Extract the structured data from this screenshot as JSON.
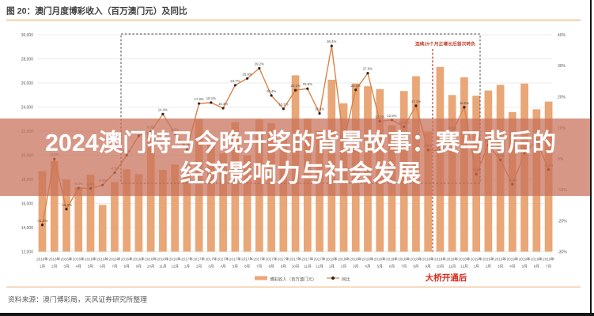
{
  "figure": {
    "title": "图 20：澳门月度博彩收入（百万澳门元）及同比",
    "source_note": "资料来源：澳门博彩局，天风证券研究所整理"
  },
  "overlay_banner": {
    "line1": "2024澳门特马今晚开奖的背景故事：赛马背后的",
    "line2": "经济影响力与社会发展",
    "text_color": "#ffffff",
    "background_color": "rgba(200,112,89,0.73)"
  },
  "annotations": {
    "streak_note": "连续29个月正增长后首次转负",
    "bridge_note": "大桥开通后",
    "note_color": "#c2402e",
    "bridge_color": "#d92b1c"
  },
  "legend": {
    "bar_series_label": "博彩收入（百万澳门元）",
    "line_series_label": "同比"
  },
  "colors": {
    "bar": "#e9a676",
    "line": "#dc8348",
    "marker": "#2e221b",
    "gridline": "#ececec",
    "axis_text": "#595959",
    "point_label": "#4d4d4d",
    "title_text": "#3f3f3f",
    "rule": "#f2cda6",
    "dashed_box": "#4d4d4d",
    "red_dash": "#c0392b",
    "frame": "#141414",
    "source_text": "#595959"
  },
  "chart_data": {
    "type": "bar+line",
    "title": "图 20：澳门月度博彩收入（百万澳门元）及同比",
    "bar_series_name": "博彩收入（百万澳门元）",
    "line_series_name": "同比",
    "legend_position": "bottom",
    "grid": "horizontal",
    "ylim_left": [
      12000,
      30000
    ],
    "ylim_right": [
      -30,
      40
    ],
    "left_axis_ticks": [
      "30,000",
      "28,000",
      "26,000",
      "24,000",
      "22,000",
      "20,000",
      "18,000",
      "16,000",
      "14,000",
      "12,000"
    ],
    "right_axis_ticks": [
      "40%",
      "30%",
      "20%",
      "10%",
      "0%",
      "-10%",
      "-20%",
      "-30%"
    ],
    "x_year_labels": [
      "2016年",
      "2016年",
      "2016年",
      "2016年",
      "2016年",
      "2016年",
      "2016年",
      "2016年",
      "2016年",
      "2016年",
      "2016年",
      "2016年",
      "2017年",
      "2017年",
      "2017年",
      "2017年",
      "2017年",
      "2017年",
      "2017年",
      "2017年",
      "2017年",
      "2017年",
      "2017年",
      "2017年",
      "2018年",
      "2018年",
      "2018年",
      "2018年",
      "2018年",
      "2018年",
      "2018年",
      "2018年",
      "2018年",
      "2018年",
      "2018年",
      "2018年",
      "2019年",
      "2019年",
      "2019年",
      "2019年",
      "2019年",
      "2019年",
      "2019年"
    ],
    "x_month_labels": [
      "1月",
      "2月",
      "3月",
      "4月",
      "5月",
      "6月",
      "7月",
      "8月",
      "9月",
      "10月",
      "11月",
      "12月",
      "1月",
      "2月",
      "3月",
      "4月",
      "5月",
      "6月",
      "7月",
      "8月",
      "9月",
      "10月",
      "11月",
      "12月",
      "1月",
      "2月",
      "3月",
      "4月",
      "5月",
      "6月",
      "7月",
      "8月",
      "9月",
      "10月",
      "11月",
      "12月",
      "1月",
      "2月",
      "3月",
      "4月",
      "5月",
      "6月",
      "7月"
    ],
    "revenue": [
      18674,
      19518,
      17980,
      17340,
      18389,
      15880,
      17770,
      18837,
      18430,
      21818,
      18789,
      19230,
      19255,
      22992,
      21232,
      20164,
      22744,
      19992,
      22964,
      22676,
      21408,
      26630,
      23038,
      22040,
      26265,
      24312,
      25952,
      25727,
      25488,
      22490,
      25327,
      26559,
      21952,
      27328,
      24995,
      26468,
      24942,
      25370,
      25840,
      23588,
      25952,
      23812,
      24453
    ],
    "yoy_percent": [
      -21.4,
      -0.1,
      -16.3,
      -9.5,
      -9.6,
      -8.5,
      -4.5,
      1.1,
      7.4,
      8.8,
      14.4,
      8.0,
      3.1,
      17.8,
      18.1,
      16.3,
      23.7,
      25.9,
      29.2,
      20.4,
      16.1,
      22.1,
      22.6,
      14.6,
      36.4,
      5.7,
      22.2,
      27.6,
      12.1,
      12.5,
      10.3,
      17.1,
      2.8,
      2.6,
      8.5,
      16.6,
      -5.0,
      4.4,
      -0.4,
      -8.3,
      1.8,
      5.9,
      -3.5
    ],
    "yoy_label_format": "0.0%",
    "dashed_box_note": "连续29个月正增长后首次转负",
    "red_line_note": "大桥开通后"
  }
}
